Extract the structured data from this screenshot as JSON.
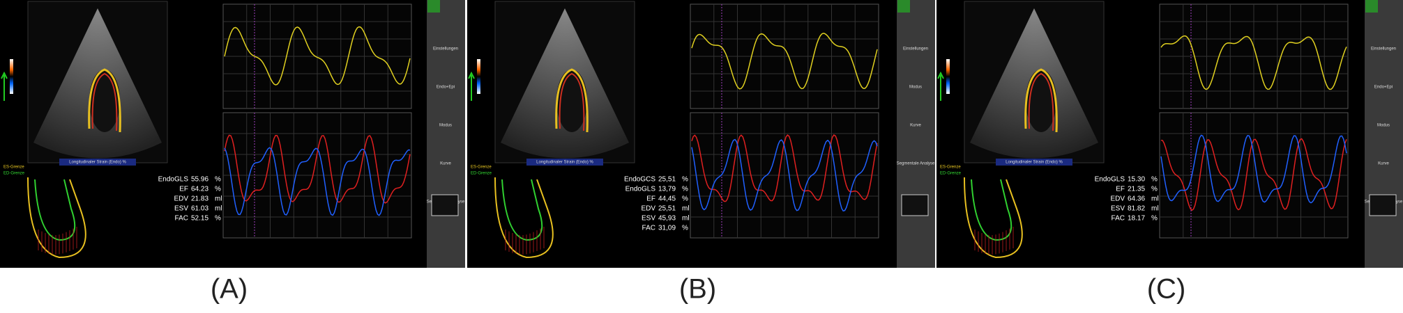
{
  "panels": [
    {
      "label": "(A)",
      "strain_title": "Longitudinaler Strain (Endo) %",
      "legend": [
        "ES-Grenze",
        "ED-Grenze"
      ],
      "sidebar": [
        "Einstellungen",
        "Endo+Epi",
        "Modus",
        "Kurve",
        "Segmentale Analyse"
      ],
      "metrics": [
        {
          "name": "EndoGLS",
          "value": "55.96",
          "unit": "%"
        },
        {
          "name": "EF",
          "value": "64.23",
          "unit": "%"
        },
        {
          "name": "EDV",
          "value": "21.83",
          "unit": "ml"
        },
        {
          "name": "ESV",
          "value": "61.03",
          "unit": "ml"
        },
        {
          "name": "FAC",
          "value": "52.15",
          "unit": "%"
        }
      ]
    },
    {
      "label": "(B)",
      "strain_title": "Longitudinaler Strain (Endo) %",
      "legend": [
        "ES-Grenze",
        "ED-Grenze"
      ],
      "sidebar": [
        "Einstellungen",
        "Modus",
        "Kurve",
        "Segmentale Analyse"
      ],
      "metrics": [
        {
          "name": "EndoGCS",
          "value": "25,51",
          "unit": "%"
        },
        {
          "name": "EndoGLS",
          "value": "13,79",
          "unit": "%"
        },
        {
          "name": "EF",
          "value": "44,45",
          "unit": "%"
        },
        {
          "name": "EDV",
          "value": "25,51",
          "unit": "ml"
        },
        {
          "name": "ESV",
          "value": "45,93",
          "unit": "ml"
        },
        {
          "name": "FAC",
          "value": "31,09",
          "unit": "%"
        }
      ]
    },
    {
      "label": "(C)",
      "strain_title": "Longitudinaler Strain (Endo) %",
      "legend": [
        "ES-Grenze",
        "ED-Grenze"
      ],
      "sidebar": [
        "Einstellungen",
        "Endo+Epi",
        "Modus",
        "Kurve",
        "Segmentale Analyse"
      ],
      "metrics": [
        {
          "name": "EndoGLS",
          "value": "15.30",
          "unit": "%"
        },
        {
          "name": "EF",
          "value": "21.35",
          "unit": "%"
        },
        {
          "name": "EDV",
          "value": "64.36",
          "unit": "ml"
        },
        {
          "name": "ESV",
          "value": "81.82",
          "unit": "ml"
        },
        {
          "name": "FAC",
          "value": "18.17",
          "unit": "%"
        }
      ]
    }
  ]
}
